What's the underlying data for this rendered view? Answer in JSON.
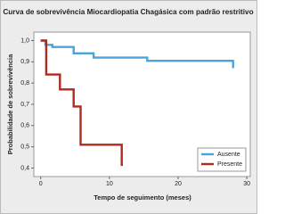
{
  "chart_data": {
    "type": "step",
    "title": "Curva de sobrevivência Miocardiopatia Chagásica com padrão restritivo",
    "xlabel": "Tempo de seguimento (meses)",
    "ylabel": "Probabilidade de sobrevivência",
    "xlim": [
      -1,
      30.5
    ],
    "ylim": [
      0.36,
      1.04
    ],
    "xticks": [
      0,
      10,
      20,
      30
    ],
    "yticks": [
      {
        "value": 0.4,
        "label": "0,4"
      },
      {
        "value": 0.5,
        "label": "0,5"
      },
      {
        "value": 0.6,
        "label": "0,6"
      },
      {
        "value": 0.7,
        "label": "0,7"
      },
      {
        "value": 0.8,
        "label": "0,8"
      },
      {
        "value": 0.9,
        "label": "0,9"
      },
      {
        "value": 1,
        "label": "1,0"
      }
    ],
    "legend": "lower right",
    "series": [
      {
        "name": "Ausente",
        "color": "#4aa3d9",
        "x": [
          0,
          0.7,
          0.7,
          1.7,
          1.7,
          4.8,
          4.8,
          7.7,
          7.7,
          15.5,
          15.5,
          28,
          28
        ],
        "values": [
          1.0,
          1.0,
          0.98,
          0.98,
          0.97,
          0.97,
          0.94,
          0.94,
          0.92,
          0.92,
          0.905,
          0.905,
          0.87
        ]
      },
      {
        "name": "Presente",
        "color": "#b02a1e",
        "x": [
          0,
          0.8,
          0.8,
          2.8,
          2.8,
          4.8,
          4.8,
          5.8,
          5.8,
          11.8,
          11.8
        ],
        "values": [
          1.0,
          1.0,
          0.84,
          0.84,
          0.77,
          0.77,
          0.69,
          0.69,
          0.51,
          0.51,
          0.41
        ]
      }
    ]
  }
}
